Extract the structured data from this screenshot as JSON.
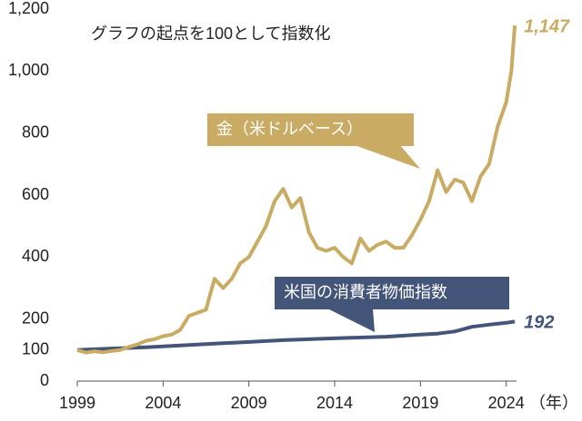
{
  "chart_data": {
    "type": "line",
    "note": "グラフの起点を100として指数化",
    "x_unit": "（年）",
    "xlim": [
      1999,
      2024.6
    ],
    "xticks": [
      1999,
      2004,
      2009,
      2014,
      2019,
      2024
    ],
    "ylim": [
      0,
      1200
    ],
    "yticks": [
      0,
      100,
      200,
      400,
      600,
      800,
      {
        "value": 1000,
        "label": "1,000"
      },
      {
        "value": 1200,
        "label": "1,200"
      }
    ],
    "grid": false,
    "series": [
      {
        "name": "金（米ドルベース）",
        "color": "#c9ab63",
        "x": [
          1999,
          1999.5,
          2000,
          2000.5,
          2001,
          2001.5,
          2002,
          2002.5,
          2003,
          2003.5,
          2004,
          2004.5,
          2005,
          2005.5,
          2006,
          2006.5,
          2007,
          2007.5,
          2008,
          2008.5,
          2009,
          2009.5,
          2010,
          2010.5,
          2011,
          2011.5,
          2012,
          2012.5,
          2013,
          2013.5,
          2014,
          2014.5,
          2015,
          2015.5,
          2016,
          2016.5,
          2017,
          2017.5,
          2018,
          2018.5,
          2019,
          2019.5,
          2020,
          2020.5,
          2021,
          2021.5,
          2022,
          2022.5,
          2023,
          2023.5,
          2024,
          2024.3,
          2024.5
        ],
        "values": [
          100,
          92,
          96,
          93,
          97,
          100,
          110,
          118,
          130,
          135,
          145,
          150,
          165,
          210,
          220,
          230,
          330,
          300,
          330,
          380,
          400,
          450,
          500,
          580,
          620,
          560,
          590,
          480,
          430,
          420,
          430,
          400,
          380,
          460,
          420,
          440,
          450,
          430,
          430,
          470,
          520,
          580,
          680,
          610,
          650,
          640,
          580,
          660,
          700,
          820,
          900,
          1000,
          1147
        ],
        "value_labels": [
          null,
          null,
          null,
          null,
          null,
          null,
          null,
          null,
          null,
          null,
          null,
          null,
          null,
          null,
          null,
          null,
          null,
          null,
          null,
          null,
          null,
          null,
          null,
          null,
          null,
          null,
          null,
          null,
          null,
          null,
          null,
          null,
          null,
          null,
          null,
          null,
          null,
          null,
          null,
          null,
          null,
          null,
          null,
          null,
          null,
          null,
          null,
          null,
          null,
          null,
          null,
          null,
          "1,147"
        ]
      },
      {
        "name": "米国の消費者物価指数",
        "color": "#44557a",
        "x": [
          1999,
          2001,
          2003,
          2005,
          2007,
          2009,
          2011,
          2013,
          2015,
          2017,
          2019,
          2020,
          2021,
          2022,
          2023,
          2024,
          2024.5
        ],
        "values": [
          100,
          105,
          109,
          115,
          121,
          126,
          132,
          136,
          140,
          143,
          150,
          153,
          160,
          175,
          182,
          188,
          192
        ],
        "value_labels": [
          null,
          null,
          null,
          null,
          null,
          null,
          null,
          null,
          null,
          null,
          null,
          null,
          null,
          null,
          null,
          null,
          "192"
        ]
      }
    ]
  }
}
